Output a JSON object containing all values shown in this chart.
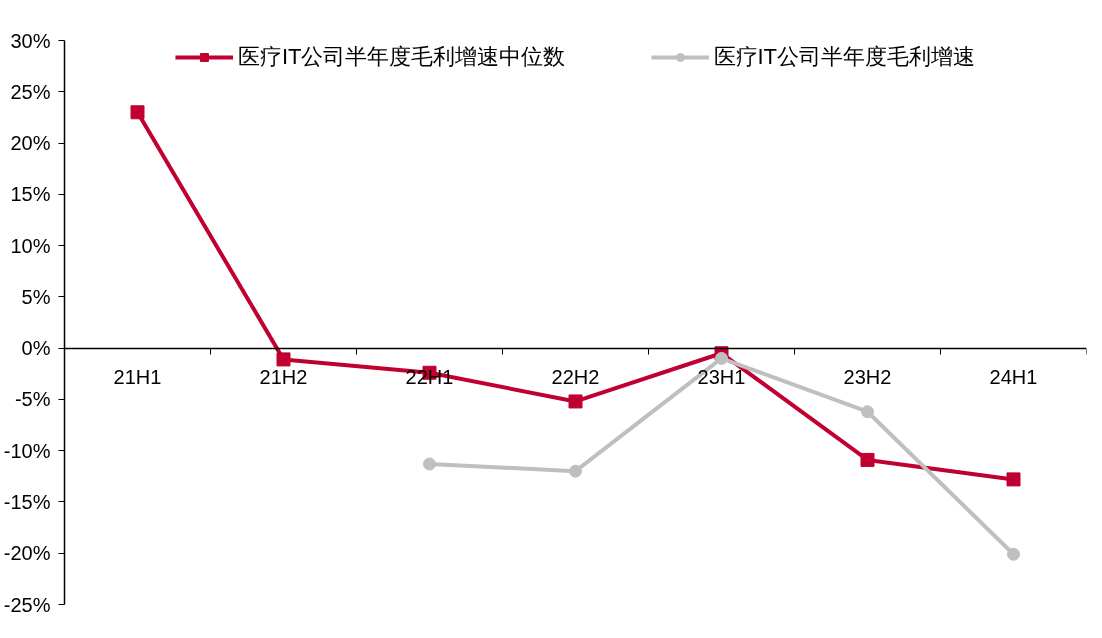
{
  "chart_data": {
    "type": "line",
    "categories": [
      "21H1",
      "21H2",
      "22H1",
      "22H2",
      "23H1",
      "23H2",
      "24H1"
    ],
    "series": [
      {
        "name": "医疗IT公司半年度毛利增速中位数",
        "color": "#c00030",
        "marker": "square",
        "values": [
          23.0,
          -1.1,
          -2.4,
          -5.2,
          -0.5,
          -10.9,
          -12.8
        ]
      },
      {
        "name": "医疗IT公司半年度毛利增速",
        "color": "#bfbfbf",
        "marker": "circle",
        "values": [
          null,
          null,
          -11.3,
          -12.0,
          -1.0,
          -6.2,
          -20.1
        ]
      }
    ],
    "ylim": [
      -25,
      30
    ],
    "yticks": [
      {
        "value": -25,
        "label": "-25%"
      },
      {
        "value": -20,
        "label": "-20%"
      },
      {
        "value": -15,
        "label": "-15%"
      },
      {
        "value": -10,
        "label": "-10%"
      },
      {
        "value": -5,
        "label": "-5%"
      },
      {
        "value": 0,
        "label": "0%"
      },
      {
        "value": 5,
        "label": "5%"
      },
      {
        "value": 10,
        "label": "10%"
      },
      {
        "value": 15,
        "label": "15%"
      },
      {
        "value": 20,
        "label": "20%"
      },
      {
        "value": 25,
        "label": "25%"
      },
      {
        "value": 30,
        "label": "30%"
      }
    ],
    "grid": false,
    "legend": "top"
  }
}
